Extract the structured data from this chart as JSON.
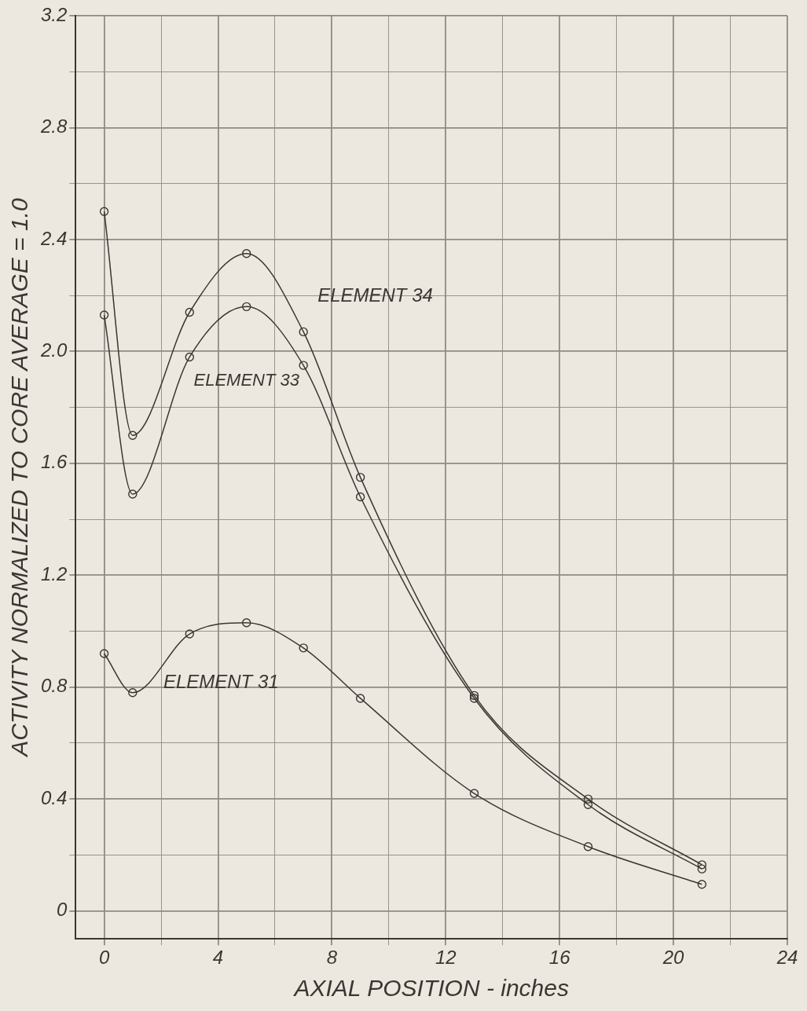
{
  "chart_data": {
    "type": "line",
    "xlabel": "AXIAL POSITION - inches",
    "ylabel": "ACTIVITY NORMALIZED TO CORE AVERAGE = 1.0",
    "x": [
      0,
      1,
      3,
      5,
      7,
      9,
      13,
      17,
      21
    ],
    "series": [
      {
        "name": "ELEMENT 34",
        "color": "#3a3632",
        "values": [
          2.5,
          1.7,
          2.14,
          2.35,
          2.07,
          1.55,
          0.77,
          0.4,
          0.165
        ]
      },
      {
        "name": "ELEMENT 33",
        "color": "#3a3632",
        "values": [
          2.13,
          1.49,
          1.98,
          2.16,
          1.95,
          1.48,
          0.76,
          0.38,
          0.15
        ]
      },
      {
        "name": "ELEMENT 31",
        "color": "#3a3632",
        "values": [
          0.92,
          0.78,
          0.99,
          1.03,
          0.94,
          0.76,
          0.42,
          0.23,
          0.095
        ]
      }
    ],
    "xlim": [
      -1,
      24
    ],
    "ylim": [
      -0.1,
      3.2
    ],
    "xticks": [
      0,
      {
        "value": 2,
        "label": null
      },
      4,
      {
        "value": 6,
        "label": null
      },
      8,
      {
        "value": 10,
        "label": null
      },
      12,
      {
        "value": 14,
        "label": null
      },
      16,
      {
        "value": 18,
        "label": null
      },
      20,
      {
        "value": 22,
        "label": null
      },
      24
    ],
    "yticks": [
      0,
      {
        "value": 0.2,
        "label": null
      },
      0.4,
      {
        "value": 0.6,
        "label": null
      },
      0.8,
      {
        "value": 1.0,
        "label": null
      },
      1.2,
      {
        "value": 1.4,
        "label": null
      },
      1.6,
      {
        "value": 1.8,
        "label": null
      },
      {
        "value": 2,
        "label": "2.0"
      },
      {
        "value": 2.2,
        "label": null
      },
      2.4,
      {
        "value": 2.6,
        "label": null
      },
      2.8,
      {
        "value": 3.0,
        "label": null
      },
      3.2
    ],
    "grid": true,
    "legend": false,
    "marker": "circle",
    "line_style": "solid"
  }
}
